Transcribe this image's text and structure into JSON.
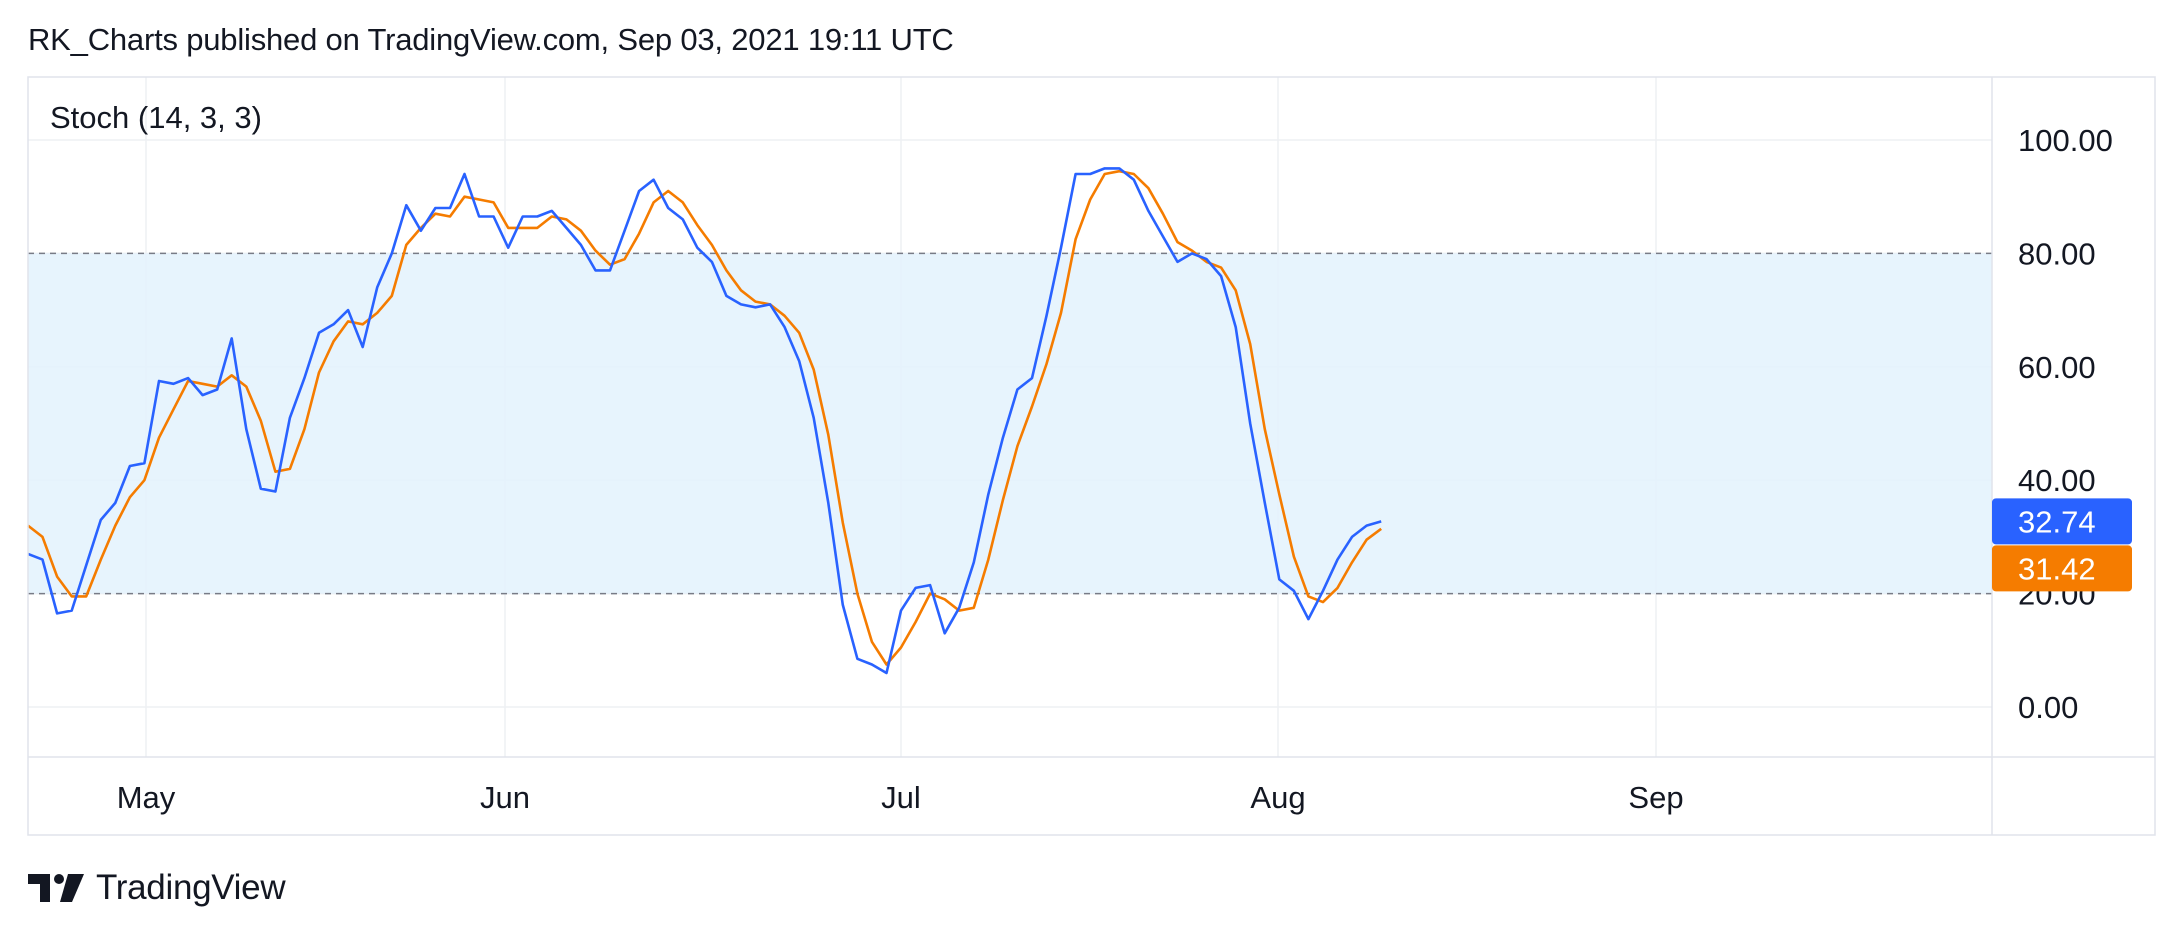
{
  "header": {
    "publish_line": "RK_Charts published on TradingView.com, Sep 03, 2021 19:11 UTC"
  },
  "footer": {
    "brand": "TradingView",
    "logo_icon": "tradingview-logo-icon"
  },
  "colors": {
    "k_line": "#2962ff",
    "d_line": "#f57c00",
    "band_fill": "#e3f2fd",
    "grid": "#eef0f3",
    "dashed": "#787b86",
    "border": "#e0e3eb"
  },
  "chart_data": {
    "type": "line",
    "title": "Stoch (14, 3, 3)",
    "x_ticks": [
      "May",
      "Jun",
      "Jul",
      "Aug",
      "Sep"
    ],
    "y_ticks": [
      "0.00",
      "20.00",
      "40.00",
      "60.00",
      "80.00",
      "100.00"
    ],
    "ylim": [
      -9,
      112
    ],
    "bands": {
      "upper": 80,
      "lower": 20
    },
    "grid": true,
    "last_values": {
      "k": "32.74",
      "d": "31.42"
    },
    "series": [
      {
        "key": "k",
        "values": [
          27,
          26,
          16.5,
          17,
          25,
          33,
          36,
          42.5,
          43,
          57.5,
          57,
          58,
          55,
          56,
          65,
          49,
          38.5,
          38,
          51,
          58,
          66,
          67.5,
          70,
          63.5,
          74,
          80,
          88.5,
          84,
          88,
          88,
          94,
          86.5,
          86.5,
          81,
          86.5,
          86.5,
          87.5,
          84.5,
          81.5,
          77,
          77,
          84,
          91,
          93,
          88,
          86,
          81,
          78.5,
          72.5,
          71,
          70.5,
          71,
          67,
          61,
          51,
          36,
          18,
          8.5,
          7.5,
          6,
          17,
          21,
          21.5,
          13,
          17.5,
          25.5,
          37.5,
          47.5,
          56,
          58,
          69,
          81,
          94,
          94,
          95,
          95,
          93,
          87.5,
          83,
          78.5,
          80,
          79,
          76,
          67,
          50,
          36,
          22.5,
          20.5,
          15.5,
          20.5,
          26,
          30,
          32,
          32.74
        ]
      },
      {
        "key": "d",
        "values": [
          32,
          30,
          23,
          19.5,
          19.5,
          26,
          32,
          37,
          40,
          47.5,
          52.5,
          57.5,
          57,
          56.5,
          58.5,
          56.5,
          50.5,
          41.5,
          42,
          49,
          59,
          64.5,
          68,
          67.5,
          69.5,
          72.5,
          81.5,
          84.5,
          87,
          86.5,
          90,
          89.5,
          89,
          84.5,
          84.5,
          84.5,
          86.5,
          86,
          84,
          80.5,
          78,
          79,
          83.5,
          89,
          91,
          89,
          85,
          81.5,
          77,
          73.5,
          71.5,
          71,
          69,
          66,
          59.5,
          48,
          32.5,
          20,
          11.5,
          7.5,
          10.5,
          15,
          20,
          19,
          17,
          17.5,
          26,
          36.5,
          46,
          53,
          60.5,
          69.5,
          82.5,
          89.5,
          94,
          94.5,
          94,
          91.5,
          87,
          82,
          80.5,
          78.5,
          77.5,
          73.5,
          64,
          49,
          37.5,
          26.5,
          19.5,
          18.5,
          21,
          25.5,
          29.5,
          31.42
        ]
      }
    ]
  }
}
